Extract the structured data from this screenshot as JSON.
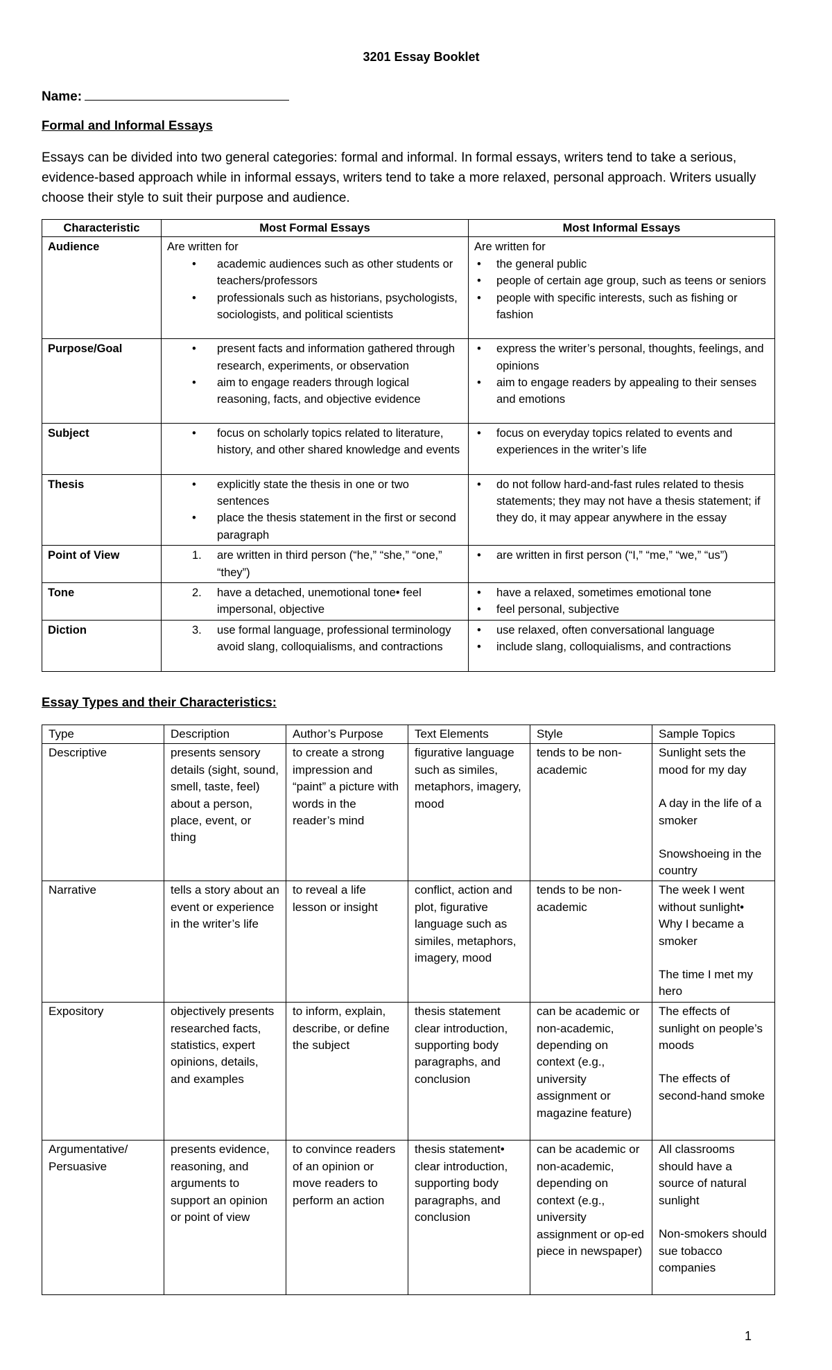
{
  "title": "3201 Essay Booklet",
  "name_label": "Name:",
  "section1": {
    "heading": "Formal and Informal Essays",
    "intro": "Essays can be divided into two general categories: formal and informal.  In formal essays, writers tend to take a serious, evidence-based approach while in informal essays, writers tend to take a more relaxed, personal approach. Writers usually choose their style to suit their purpose and audience."
  },
  "table1": {
    "headers": [
      "Characteristic",
      "Most Formal Essays",
      "Most Informal Essays"
    ],
    "rows": [
      {
        "label": "Audience",
        "formal_lead": "Are written for",
        "formal": [
          "academic audiences such as other students or teachers/professors",
          "professionals such as historians, psychologists, sociologists, and political scientists"
        ],
        "informal_lead": "Are written for",
        "informal": [
          "the general public",
          "people of certain age group, such as teens or seniors",
          "people with specific interests, such as fishing or fashion"
        ]
      },
      {
        "label": "Purpose/Goal",
        "formal": [
          "present facts and information gathered through research, experiments, or observation",
          "aim to engage readers through logical reasoning, facts, and objective evidence"
        ],
        "informal": [
          "express the writer’s personal, thoughts, feelings, and opinions",
          "aim to engage readers by appealing to their senses and emotions"
        ]
      },
      {
        "label": "Subject",
        "formal": [
          "focus on scholarly topics related to literature, history, and other shared knowledge and events"
        ],
        "informal": [
          "focus on everyday topics related to events and experiences in the writer’s life"
        ]
      },
      {
        "label": "Thesis",
        "formal": [
          "explicitly state the thesis in one or two sentences",
          "place the thesis statement in the first or second paragraph"
        ],
        "informal": [
          "do not follow hard-and-fast rules related to thesis statements; they may not have a thesis statement; if they do, it may appear anywhere in the essay"
        ]
      },
      {
        "label": "Point of View",
        "formal_num": "1.",
        "formal": [
          "are written in third person (“he,” “she,” “one,” “they”)"
        ],
        "informal": [
          "are written in first person (“I,” “me,” “we,” “us”)"
        ]
      },
      {
        "label": "Tone",
        "formal_num": "2.",
        "formal": [
          "have a detached, unemotional tone• feel impersonal, objective"
        ],
        "informal": [
          "have a relaxed, sometimes emotional tone",
          "feel personal, subjective"
        ]
      },
      {
        "label": "Diction",
        "formal_num": "3.",
        "formal": [
          "use formal language, professional terminology  avoid slang, colloquialisms, and contractions"
        ],
        "informal": [
          "use relaxed, often conversational language",
          " include slang, colloquialisms, and contractions"
        ]
      }
    ]
  },
  "section2": {
    "heading": "Essay Types and their Characteristics:"
  },
  "table2": {
    "headers": [
      "Type",
      "Description",
      "Author’s Purpose",
      "Text Elements",
      "Style",
      "Sample Topics"
    ],
    "rows": [
      {
        "type": "Descriptive",
        "description": "presents sensory details (sight, sound, smell, taste, feel) about a person, place, event, or thing",
        "purpose": "to create a strong impression and “paint” a picture with words in the reader’s mind",
        "elements": "figurative language such as similes, metaphors, imagery, mood",
        "style": "tends to be non-academic",
        "topics": [
          "Sunlight sets the mood for my day",
          "A day in the life of a smoker",
          "Snowshoeing in the country"
        ]
      },
      {
        "type": "Narrative",
        "description": "tells a story about an event or experience in the writer’s life",
        "purpose": "to reveal a life lesson or insight",
        "elements": "conflict,  action and plot, figurative language such as similes, metaphors, imagery,  mood",
        "style": "tends to be non-academic",
        "topics": [
          "The week I went without sunlight• Why I became a smoker",
          "The time I met my hero"
        ]
      },
      {
        "type": "Expository",
        "description": "objectively presents researched facts, statistics, expert opinions, details, and examples",
        "purpose": "to inform, explain, describe, or define the subject",
        "elements": "thesis statement clear introduction, supporting body paragraphs, and conclusion",
        "style": "can be academic or non-academic, depending on context (e.g., university assignment or magazine feature)",
        "topics": [
          "The effects of sunlight on people’s moods",
          " The effects of second-hand smoke"
        ]
      },
      {
        "type": "Argumentative/ Persuasive",
        "description": "presents evidence, reasoning, and arguments to support an opinion or point of view",
        "purpose": "to convince readers of an opinion or move readers to perform an action",
        "elements": "thesis statement• clear introduction, supporting body paragraphs, and conclusion",
        "style": "can be academic or non-academic, depending on context (e.g., university assignment or op-ed piece in newspaper)",
        "topics": [
          "All classrooms should have a source of natural sunlight",
          " Non-smokers should sue tobacco companies"
        ]
      }
    ]
  },
  "page_number": "1"
}
